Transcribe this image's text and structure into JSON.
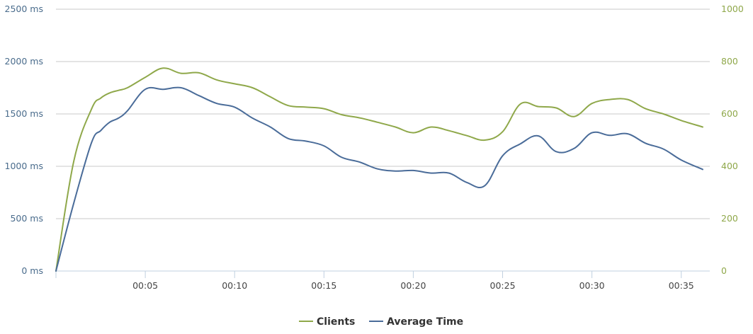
{
  "chart_data": {
    "type": "line",
    "x_unit": "minutes",
    "x_tick_labels": [
      "00:05",
      "00:10",
      "00:15",
      "00:20",
      "00:25",
      "00:30",
      "00:35"
    ],
    "x_tick_values": [
      5,
      10,
      15,
      20,
      25,
      30,
      35
    ],
    "xlim": [
      0,
      36.2
    ],
    "y_left": {
      "ylim": [
        0,
        2500
      ],
      "tick_values": [
        0,
        500,
        1000,
        1500,
        2000,
        2500
      ],
      "tick_labels": [
        "0 ms",
        "500 ms",
        "1000 ms",
        "1500 ms",
        "2000 ms",
        "2500 ms"
      ]
    },
    "y_right": {
      "ylim": [
        0,
        1000
      ],
      "tick_values": [
        0,
        200,
        400,
        600,
        800,
        1000
      ],
      "tick_labels": [
        "0",
        "200",
        "400",
        "600",
        "800",
        "1000"
      ]
    },
    "grid": true,
    "legend": "bottom-center",
    "series": [
      {
        "name": "Clients",
        "axis": "right",
        "color": "#8fa84a",
        "x": [
          0,
          1,
          2,
          2.5,
          3,
          3.5,
          4,
          5,
          6,
          7,
          8,
          9,
          10,
          11,
          12,
          13,
          14,
          15,
          16,
          17,
          18,
          19,
          20,
          21,
          22,
          23,
          24,
          25,
          26,
          27,
          28,
          29,
          30,
          31,
          32,
          33,
          34,
          35,
          36.2
        ],
        "values": [
          0,
          420,
          620,
          660,
          680,
          690,
          700,
          740,
          775,
          755,
          757,
          730,
          715,
          700,
          665,
          632,
          626,
          620,
          597,
          585,
          568,
          550,
          528,
          550,
          536,
          517,
          500,
          532,
          638,
          628,
          623,
          590,
          640,
          655,
          655,
          620,
          600,
          575,
          550
        ]
      },
      {
        "name": "Average Time",
        "axis": "left",
        "color": "#4a6c99",
        "x": [
          0,
          1,
          2,
          2.5,
          3,
          3.5,
          4,
          5,
          6,
          7,
          8,
          9,
          10,
          11,
          12,
          13,
          14,
          15,
          16,
          17,
          18,
          19,
          20,
          21,
          22,
          23,
          24,
          25,
          26,
          27,
          28,
          29,
          30,
          31,
          32,
          33,
          34,
          35,
          36.2
        ],
        "values": [
          0,
          650,
          1230,
          1340,
          1420,
          1460,
          1530,
          1735,
          1735,
          1750,
          1675,
          1600,
          1565,
          1460,
          1375,
          1265,
          1240,
          1195,
          1085,
          1040,
          975,
          955,
          960,
          935,
          935,
          845,
          815,
          1100,
          1215,
          1290,
          1140,
          1170,
          1320,
          1295,
          1310,
          1220,
          1165,
          1060,
          970
        ]
      }
    ]
  }
}
